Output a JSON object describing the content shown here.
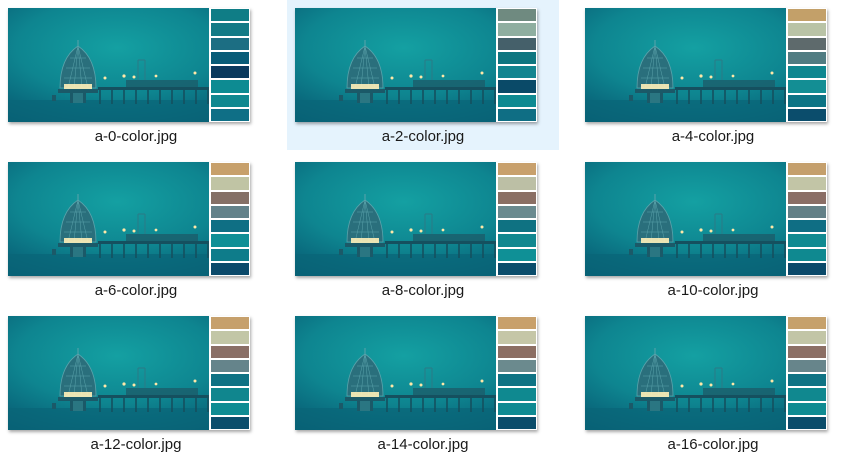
{
  "selected_index": 1,
  "files": [
    {
      "name": "a-0-color.jpg",
      "palette": [
        "#0f7d86",
        "#137a86",
        "#1c6e83",
        "#085c78",
        "#0a3a5e",
        "#0d8b92",
        "#108890",
        "#0f6f86"
      ]
    },
    {
      "name": "a-2-color.jpg",
      "palette": [
        "#6f8a80",
        "#8faea0",
        "#45606a",
        "#0e7680",
        "#138590",
        "#0a4a68",
        "#0e8a92",
        "#0f6e84"
      ]
    },
    {
      "name": "a-4-color.jpg",
      "palette": [
        "#c3a069",
        "#b9c3a6",
        "#5e6a6c",
        "#507c82",
        "#0f8790",
        "#138e94",
        "#0d7485",
        "#0b4d6c"
      ]
    },
    {
      "name": "a-6-color.jpg",
      "palette": [
        "#c7a06b",
        "#c0c4a4",
        "#857066",
        "#63828a",
        "#0f6f84",
        "#0f8f96",
        "#0e7c8a",
        "#0b4a6a"
      ]
    },
    {
      "name": "a-8-color.jpg",
      "palette": [
        "#c8a06c",
        "#bcbfa5",
        "#8a6f64",
        "#6a8a8f",
        "#0f7282",
        "#11878f",
        "#0f9096",
        "#0b4d6b"
      ]
    },
    {
      "name": "a-10-color.jpg",
      "palette": [
        "#c49f6c",
        "#c2c5a6",
        "#8a6e66",
        "#638087",
        "#0f6e84",
        "#108a91",
        "#0f8990",
        "#0b4a6a"
      ]
    },
    {
      "name": "a-12-color.jpg",
      "palette": [
        "#c6a06c",
        "#c2c6a6",
        "#8a6f66",
        "#65848b",
        "#0f7284",
        "#10868e",
        "#0f8c93",
        "#0b4e6c"
      ]
    },
    {
      "name": "a-14-color.jpg",
      "palette": [
        "#c8a06b",
        "#c5c6a7",
        "#8c6e63",
        "#6b8a8e",
        "#0f7384",
        "#0f8990",
        "#0f8a92",
        "#0b4d6b"
      ]
    },
    {
      "name": "a-16-color.jpg",
      "palette": [
        "#c6a16c",
        "#c2c5a6",
        "#8c6f65",
        "#67858b",
        "#0f7384",
        "#10888f",
        "#0f8b92",
        "#0b4d6b"
      ]
    }
  ]
}
